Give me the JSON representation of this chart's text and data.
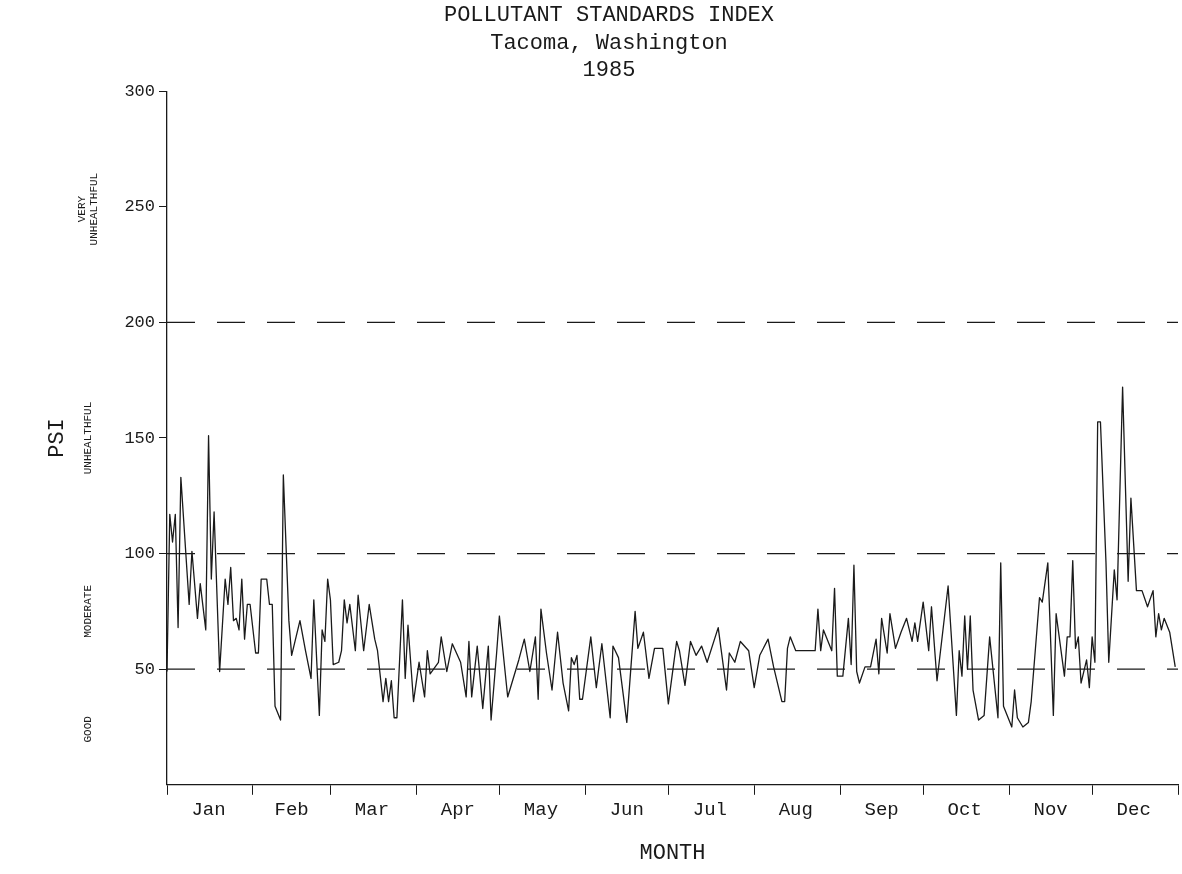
{
  "chart_data": {
    "type": "line",
    "title": "POLLUTANT STANDARDS INDEX",
    "subtitle": "Tacoma, Washington\n1985",
    "xlabel": "MONTH",
    "ylabel": "PSI",
    "x": [
      "1985-01-01",
      "1985-01-02",
      "1985-01-03",
      "1985-01-04",
      "1985-01-05",
      "1985-01-06",
      "1985-01-09",
      "1985-01-10",
      "1985-01-12",
      "1985-01-13",
      "1985-01-15",
      "1985-01-16",
      "1985-01-17",
      "1985-01-18",
      "1985-01-20",
      "1985-01-22",
      "1985-01-23",
      "1985-01-24",
      "1985-01-25",
      "1985-01-26",
      "1985-01-27",
      "1985-01-28",
      "1985-01-29",
      "1985-01-30",
      "1985-01-31",
      "1985-02-02",
      "1985-02-03",
      "1985-02-04",
      "1985-02-06",
      "1985-02-07",
      "1985-02-08",
      "1985-02-09",
      "1985-02-11",
      "1985-02-12",
      "1985-02-14",
      "1985-02-15",
      "1985-02-18",
      "1985-02-20",
      "1985-02-22",
      "1985-02-23",
      "1985-02-25",
      "1985-02-26",
      "1985-02-27",
      "1985-02-28",
      "1985-03-01",
      "1985-03-02",
      "1985-03-04",
      "1985-03-05",
      "1985-03-06",
      "1985-03-07",
      "1985-03-08",
      "1985-03-10",
      "1985-03-11",
      "1985-03-13",
      "1985-03-15",
      "1985-03-17",
      "1985-03-18",
      "1985-03-20",
      "1985-03-21",
      "1985-03-22",
      "1985-03-23",
      "1985-03-24",
      "1985-03-25",
      "1985-03-27",
      "1985-03-28",
      "1985-03-29",
      "1985-03-31",
      "1985-04-02",
      "1985-04-04",
      "1985-04-05",
      "1985-04-06",
      "1985-04-09",
      "1985-04-10",
      "1985-04-12",
      "1985-04-14",
      "1985-04-17",
      "1985-04-19",
      "1985-04-20",
      "1985-04-21",
      "1985-04-23",
      "1985-04-25",
      "1985-04-27",
      "1985-04-28",
      "1985-04-30",
      "1985-05-01",
      "1985-05-04",
      "1985-05-05",
      "1985-05-08",
      "1985-05-10",
      "1985-05-12",
      "1985-05-14",
      "1985-05-15",
      "1985-05-16",
      "1985-05-18",
      "1985-05-20",
      "1985-05-22",
      "1985-05-24",
      "1985-05-26",
      "1985-05-27",
      "1985-05-28",
      "1985-05-29",
      "1985-05-30",
      "1985-05-31",
      "1985-06-03",
      "1985-06-05",
      "1985-06-07",
      "1985-06-10",
      "1985-06-11",
      "1985-06-13",
      "1985-06-16",
      "1985-06-19",
      "1985-06-20",
      "1985-06-22",
      "1985-06-24",
      "1985-06-26",
      "1985-06-29",
      "1985-07-01",
      "1985-07-04",
      "1985-07-05",
      "1985-07-07",
      "1985-07-09",
      "1985-07-11",
      "1985-07-13",
      "1985-07-15",
      "1985-07-19",
      "1985-07-20",
      "1985-07-22",
      "1985-07-23",
      "1985-07-25",
      "1985-07-27",
      "1985-07-30",
      "1985-08-01",
      "1985-08-03",
      "1985-08-06",
      "1985-08-08",
      "1985-08-11",
      "1985-08-12",
      "1985-08-13",
      "1985-08-14",
      "1985-08-16",
      "1985-08-23",
      "1985-08-24",
      "1985-08-25",
      "1985-08-26",
      "1985-08-29",
      "1985-08-30",
      "1985-08-31",
      "1985-09-02",
      "1985-09-04",
      "1985-09-05",
      "1985-09-06",
      "1985-09-07",
      "1985-09-08",
      "1985-09-10",
      "1985-09-12",
      "1985-09-14",
      "1985-09-15",
      "1985-09-16",
      "1985-09-18",
      "1985-09-19",
      "1985-09-21",
      "1985-09-23",
      "1985-09-25",
      "1985-09-27",
      "1985-09-28",
      "1985-09-29",
      "1985-10-01",
      "1985-10-03",
      "1985-10-04",
      "1985-10-06",
      "1985-10-10",
      "1985-10-13",
      "1985-10-14",
      "1985-10-15",
      "1985-10-16",
      "1985-10-17",
      "1985-10-18",
      "1985-10-19",
      "1985-10-21",
      "1985-10-23",
      "1985-10-25",
      "1985-10-28",
      "1985-10-29",
      "1985-10-30",
      "1985-11-02",
      "1985-11-03",
      "1985-11-04",
      "1985-11-06",
      "1985-11-08",
      "1985-11-09",
      "1985-11-12",
      "1985-11-13",
      "1985-11-15",
      "1985-11-17",
      "1985-11-18",
      "1985-11-21",
      "1985-11-22",
      "1985-11-23",
      "1985-11-24",
      "1985-11-25",
      "1985-11-26",
      "1985-11-27",
      "1985-11-29",
      "1985-11-30",
      "1985-12-01",
      "1985-12-02",
      "1985-12-03",
      "1985-12-04",
      "1985-12-06",
      "1985-12-07",
      "1985-12-09",
      "1985-12-10",
      "1985-12-12",
      "1985-12-14",
      "1985-12-15",
      "1985-12-17",
      "1985-12-19",
      "1985-12-21",
      "1985-12-23",
      "1985-12-24",
      "1985-12-25",
      "1985-12-26",
      "1985-12-27",
      "1985-12-29",
      "1985-12-31"
    ],
    "series": [
      {
        "color": "#1a1a1a",
        "values": [
          49,
          117,
          105,
          117,
          68,
          133,
          78,
          101,
          72,
          87,
          67,
          151,
          89,
          118,
          49,
          89,
          78,
          94,
          71,
          72,
          67,
          89,
          63,
          78,
          78,
          57,
          57,
          89,
          89,
          78,
          78,
          34,
          28,
          134,
          71,
          56,
          71,
          58,
          46,
          80,
          30,
          67,
          62,
          89,
          80,
          52,
          53,
          58,
          80,
          70,
          78,
          58,
          82,
          58,
          78,
          63,
          58,
          36,
          46,
          36,
          45,
          29,
          29,
          80,
          46,
          69,
          36,
          53,
          38,
          58,
          48,
          53,
          64,
          49,
          61,
          53,
          38,
          62,
          38,
          60,
          33,
          60,
          28,
          57,
          73,
          38,
          42,
          54,
          63,
          49,
          64,
          37,
          76,
          57,
          41,
          66,
          44,
          32,
          55,
          52,
          56,
          37,
          37,
          64,
          42,
          61,
          29,
          60,
          55,
          27,
          75,
          59,
          66,
          46,
          59,
          59,
          35,
          62,
          58,
          43,
          62,
          56,
          60,
          53,
          68,
          59,
          41,
          57,
          53,
          62,
          58,
          42,
          56,
          63,
          51,
          36,
          36,
          59,
          64,
          58,
          58,
          76,
          58,
          67,
          58,
          85,
          47,
          47,
          72,
          52,
          95,
          49,
          44,
          51,
          51,
          63,
          48,
          72,
          57,
          74,
          59,
          66,
          72,
          62,
          70,
          62,
          79,
          58,
          77,
          45,
          86,
          30,
          58,
          47,
          73,
          50,
          73,
          41,
          28,
          30,
          64,
          29,
          96,
          34,
          25,
          41,
          29,
          25,
          27,
          36,
          81,
          79,
          96,
          30,
          74,
          47,
          64,
          64,
          97,
          59,
          64,
          44,
          54,
          42,
          64,
          53,
          157,
          157,
          96,
          53,
          93,
          80,
          172,
          88,
          124,
          84,
          84,
          77,
          84,
          64,
          74,
          67,
          72,
          66,
          51
        ]
      }
    ],
    "xlim": [
      "1985-01-01",
      "1986-01-01"
    ],
    "xticks": [
      {
        "value": "1985-01-01",
        "label": null
      },
      {
        "value": "1985-01-16",
        "label": "Jan"
      },
      {
        "value": "1985-02-01",
        "label": null
      },
      {
        "value": "1985-02-15",
        "label": "Feb"
      },
      {
        "value": "1985-03-01",
        "label": null
      },
      {
        "value": "1985-03-16",
        "label": "Mar"
      },
      {
        "value": "1985-04-01",
        "label": null
      },
      {
        "value": "1985-04-16",
        "label": "Apr"
      },
      {
        "value": "1985-05-01",
        "label": null
      },
      {
        "value": "1985-05-16",
        "label": "May"
      },
      {
        "value": "1985-06-01",
        "label": null
      },
      {
        "value": "1985-06-16",
        "label": "Jun"
      },
      {
        "value": "1985-07-01",
        "label": null
      },
      {
        "value": "1985-07-16",
        "label": "Jul"
      },
      {
        "value": "1985-08-01",
        "label": null
      },
      {
        "value": "1985-08-16",
        "label": "Aug"
      },
      {
        "value": "1985-09-01",
        "label": null
      },
      {
        "value": "1985-09-16",
        "label": "Sep"
      },
      {
        "value": "1985-10-01",
        "label": null
      },
      {
        "value": "1985-10-16",
        "label": "Oct"
      },
      {
        "value": "1985-11-01",
        "label": null
      },
      {
        "value": "1985-11-16",
        "label": "Nov"
      },
      {
        "value": "1985-12-01",
        "label": null
      },
      {
        "value": "1985-12-16",
        "label": "Dec"
      },
      {
        "value": "1986-01-01",
        "label": null
      }
    ],
    "ylim": [
      0,
      300
    ],
    "yticks": [
      50,
      100,
      150,
      200,
      250,
      300
    ],
    "ref_lines": [
      {
        "axis": "y",
        "value": 50,
        "line_style": "dashed"
      },
      {
        "axis": "y",
        "value": 100,
        "line_style": "dashed"
      },
      {
        "axis": "y",
        "value": 200,
        "line_style": "dashed"
      }
    ],
    "annotations": [
      "GOOD",
      "MODERATE",
      "UNHEALTHFUL",
      "VERY UNHEALTHFUL"
    ],
    "grid": false,
    "legend": false,
    "marker": "none",
    "line_style": "solid"
  }
}
